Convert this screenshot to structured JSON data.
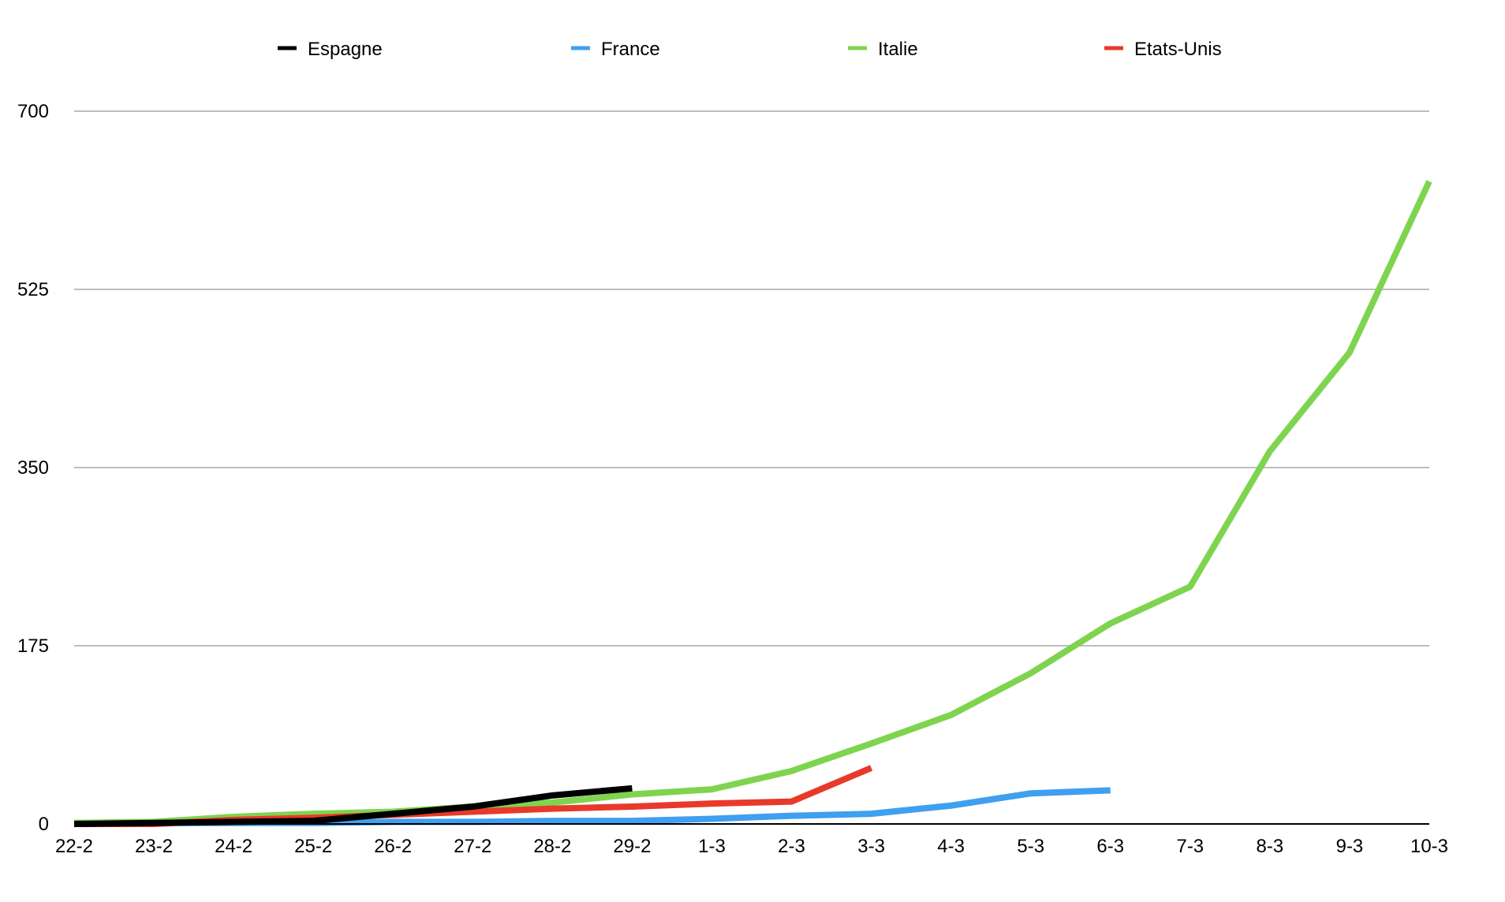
{
  "chart_data": {
    "type": "line",
    "title": "",
    "xlabel": "",
    "ylabel": "",
    "ylim": [
      0,
      700
    ],
    "yticks": [
      0,
      175,
      350,
      525,
      700
    ],
    "grid": true,
    "legend_position": "top",
    "categories": [
      "22-2",
      "23-2",
      "24-2",
      "25-2",
      "26-2",
      "27-2",
      "28-2",
      "29-2",
      "1-3",
      "2-3",
      "3-3",
      "4-3",
      "5-3",
      "6-3",
      "7-3",
      "8-3",
      "9-3",
      "10-3"
    ],
    "series": [
      {
        "name": "Espagne",
        "color": "#000000",
        "values": [
          0,
          1,
          2,
          3,
          10,
          17,
          28,
          35,
          null,
          null,
          null,
          null,
          null,
          null,
          null,
          null,
          null,
          null
        ]
      },
      {
        "name": "France",
        "color": "#3f9ff0",
        "values": [
          1,
          1,
          1,
          1,
          2,
          2,
          3,
          3,
          5,
          8,
          10,
          18,
          30,
          33,
          null,
          null,
          null,
          null
        ]
      },
      {
        "name": "Italie",
        "color": "#7ed44f",
        "values": [
          1,
          2,
          7,
          10,
          12,
          17,
          21,
          29,
          34,
          52,
          79,
          107,
          148,
          197,
          233,
          366,
          463,
          631
        ]
      },
      {
        "name": "Etats-Unis",
        "color": "#e8392a",
        "values": [
          0,
          0,
          4,
          6,
          9,
          12,
          15,
          17,
          20,
          22,
          55,
          null,
          null,
          null,
          null,
          null,
          null,
          null
        ]
      }
    ]
  }
}
